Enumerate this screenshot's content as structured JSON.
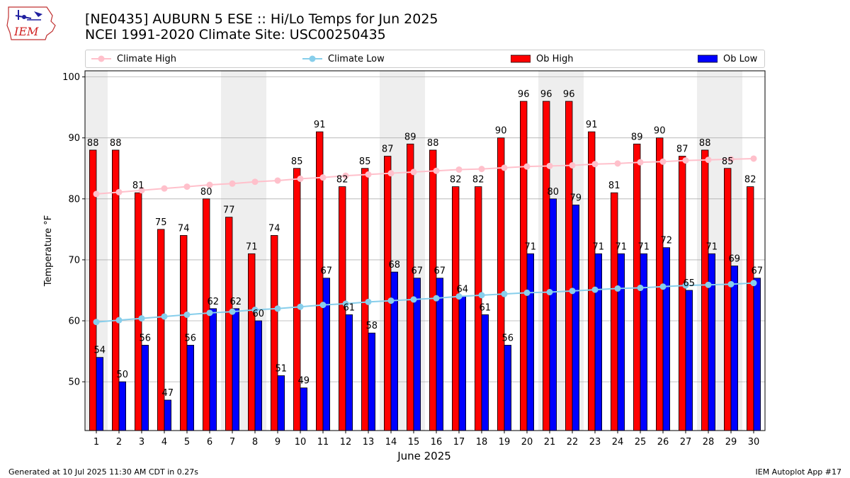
{
  "header": {
    "logo_text": "IEM",
    "title": "[NE0435] AUBURN 5 ESE :: Hi/Lo Temps for Jun 2025",
    "subtitle": "NCEI 1991-2020 Climate Site: USC00250435"
  },
  "legend": {
    "climate_high": "Climate High",
    "climate_low": "Climate Low",
    "ob_high": "Ob High",
    "ob_low": "Ob Low"
  },
  "footer": {
    "generated": "Generated at 10 Jul 2025 11:30 AM CDT in 0.27s",
    "app": "IEM Autoplot App #17"
  },
  "colors": {
    "ob_high": "#ff0000",
    "ob_low": "#0000ff",
    "climate_high": "#ffc0cb",
    "climate_low": "#87ceeb",
    "weekend_shade": "#eeeeee",
    "grid": "#b0b0b0"
  },
  "chart_data": {
    "type": "bar",
    "xlabel": "June 2025",
    "ylabel": "Temperature °F",
    "ylim": [
      42,
      101
    ],
    "yticks": [
      50,
      60,
      70,
      80,
      90,
      100
    ],
    "grid": "horizontal",
    "legend_position": "top",
    "categories": [
      "1",
      "2",
      "3",
      "4",
      "5",
      "6",
      "7",
      "8",
      "9",
      "10",
      "11",
      "12",
      "13",
      "14",
      "15",
      "16",
      "17",
      "18",
      "19",
      "20",
      "21",
      "22",
      "23",
      "24",
      "25",
      "26",
      "27",
      "28",
      "29",
      "30"
    ],
    "shaded_days": [
      1,
      7,
      8,
      14,
      15,
      21,
      22,
      28,
      29
    ],
    "series": [
      {
        "name": "Ob High",
        "kind": "bar",
        "values": [
          88,
          88,
          81,
          75,
          74,
          80,
          77,
          71,
          74,
          85,
          91,
          82,
          85,
          87,
          89,
          88,
          82,
          82,
          90,
          96,
          96,
          96,
          91,
          81,
          89,
          90,
          87,
          88,
          85,
          82
        ]
      },
      {
        "name": "Ob Low",
        "kind": "bar",
        "values": [
          54,
          50,
          56,
          47,
          56,
          62,
          62,
          60,
          51,
          49,
          67,
          61,
          58,
          68,
          67,
          67,
          64,
          61,
          56,
          71,
          80,
          79,
          71,
          71,
          71,
          72,
          65,
          71,
          69,
          67
        ]
      },
      {
        "name": "Climate High",
        "kind": "line",
        "values": [
          80.8,
          81.1,
          81.4,
          81.7,
          82.0,
          82.3,
          82.5,
          82.8,
          83.0,
          83.3,
          83.5,
          83.8,
          84.0,
          84.2,
          84.4,
          84.6,
          84.8,
          84.9,
          85.1,
          85.3,
          85.4,
          85.5,
          85.7,
          85.8,
          86.0,
          86.1,
          86.3,
          86.4,
          86.5,
          86.6
        ]
      },
      {
        "name": "Climate Low",
        "kind": "line",
        "values": [
          59.8,
          60.1,
          60.4,
          60.7,
          61.0,
          61.3,
          61.5,
          61.8,
          62.0,
          62.3,
          62.6,
          62.8,
          63.1,
          63.3,
          63.5,
          63.7,
          64.0,
          64.2,
          64.4,
          64.6,
          64.7,
          64.9,
          65.1,
          65.3,
          65.4,
          65.6,
          65.8,
          65.9,
          66.0,
          66.2
        ]
      }
    ]
  }
}
